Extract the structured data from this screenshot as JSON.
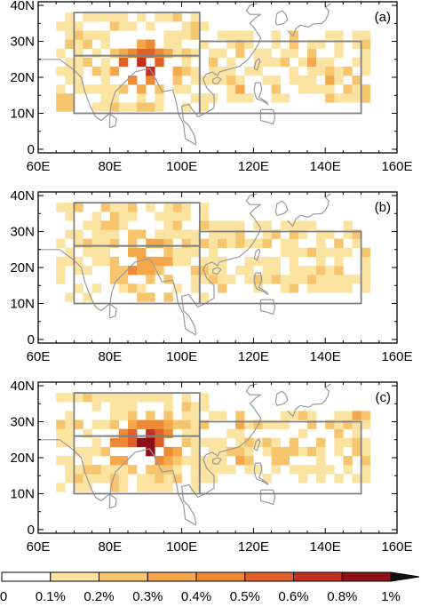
{
  "panels": [
    {
      "label": "(a)"
    },
    {
      "label": "(b)"
    },
    {
      "label": "(c)"
    }
  ],
  "axes": {
    "lon_range": [
      60,
      160
    ],
    "lat_range": [
      -1,
      41
    ],
    "x_ticks": [
      {
        "value": 60,
        "label": "60E"
      },
      {
        "value": 80,
        "label": "80E"
      },
      {
        "value": 100,
        "label": "100E"
      },
      {
        "value": 120,
        "label": "120E"
      },
      {
        "value": 140,
        "label": "140E"
      },
      {
        "value": 160,
        "label": "160E"
      }
    ],
    "y_ticks": [
      {
        "value": 0,
        "label": "0"
      },
      {
        "value": 10,
        "label": "10N"
      },
      {
        "value": 20,
        "label": "20N"
      },
      {
        "value": 30,
        "label": "30N"
      },
      {
        "value": 40,
        "label": "40N"
      }
    ]
  },
  "regions": [
    {
      "lon": [
        70,
        105
      ],
      "lat": [
        10,
        26
      ]
    },
    {
      "lon": [
        70,
        105
      ],
      "lat": [
        26,
        38
      ]
    },
    {
      "lon": [
        105,
        150
      ],
      "lat": [
        10,
        30
      ]
    }
  ],
  "colorbar": {
    "labels": [
      "0",
      "0.1%",
      "0.2%",
      "0.3%",
      "0.4%",
      "0.5%",
      "0.6%",
      "0.8%",
      "1%"
    ],
    "colors": [
      "#ffffff",
      "#fbe3a2",
      "#f7c56d",
      "#f4a84b",
      "#ee8a35",
      "#e0602a",
      "#c2301f",
      "#8c1019",
      "#111111"
    ]
  },
  "colors": {
    "frame": "#000000",
    "coastline": "#999999",
    "region_box": "#808080"
  }
}
